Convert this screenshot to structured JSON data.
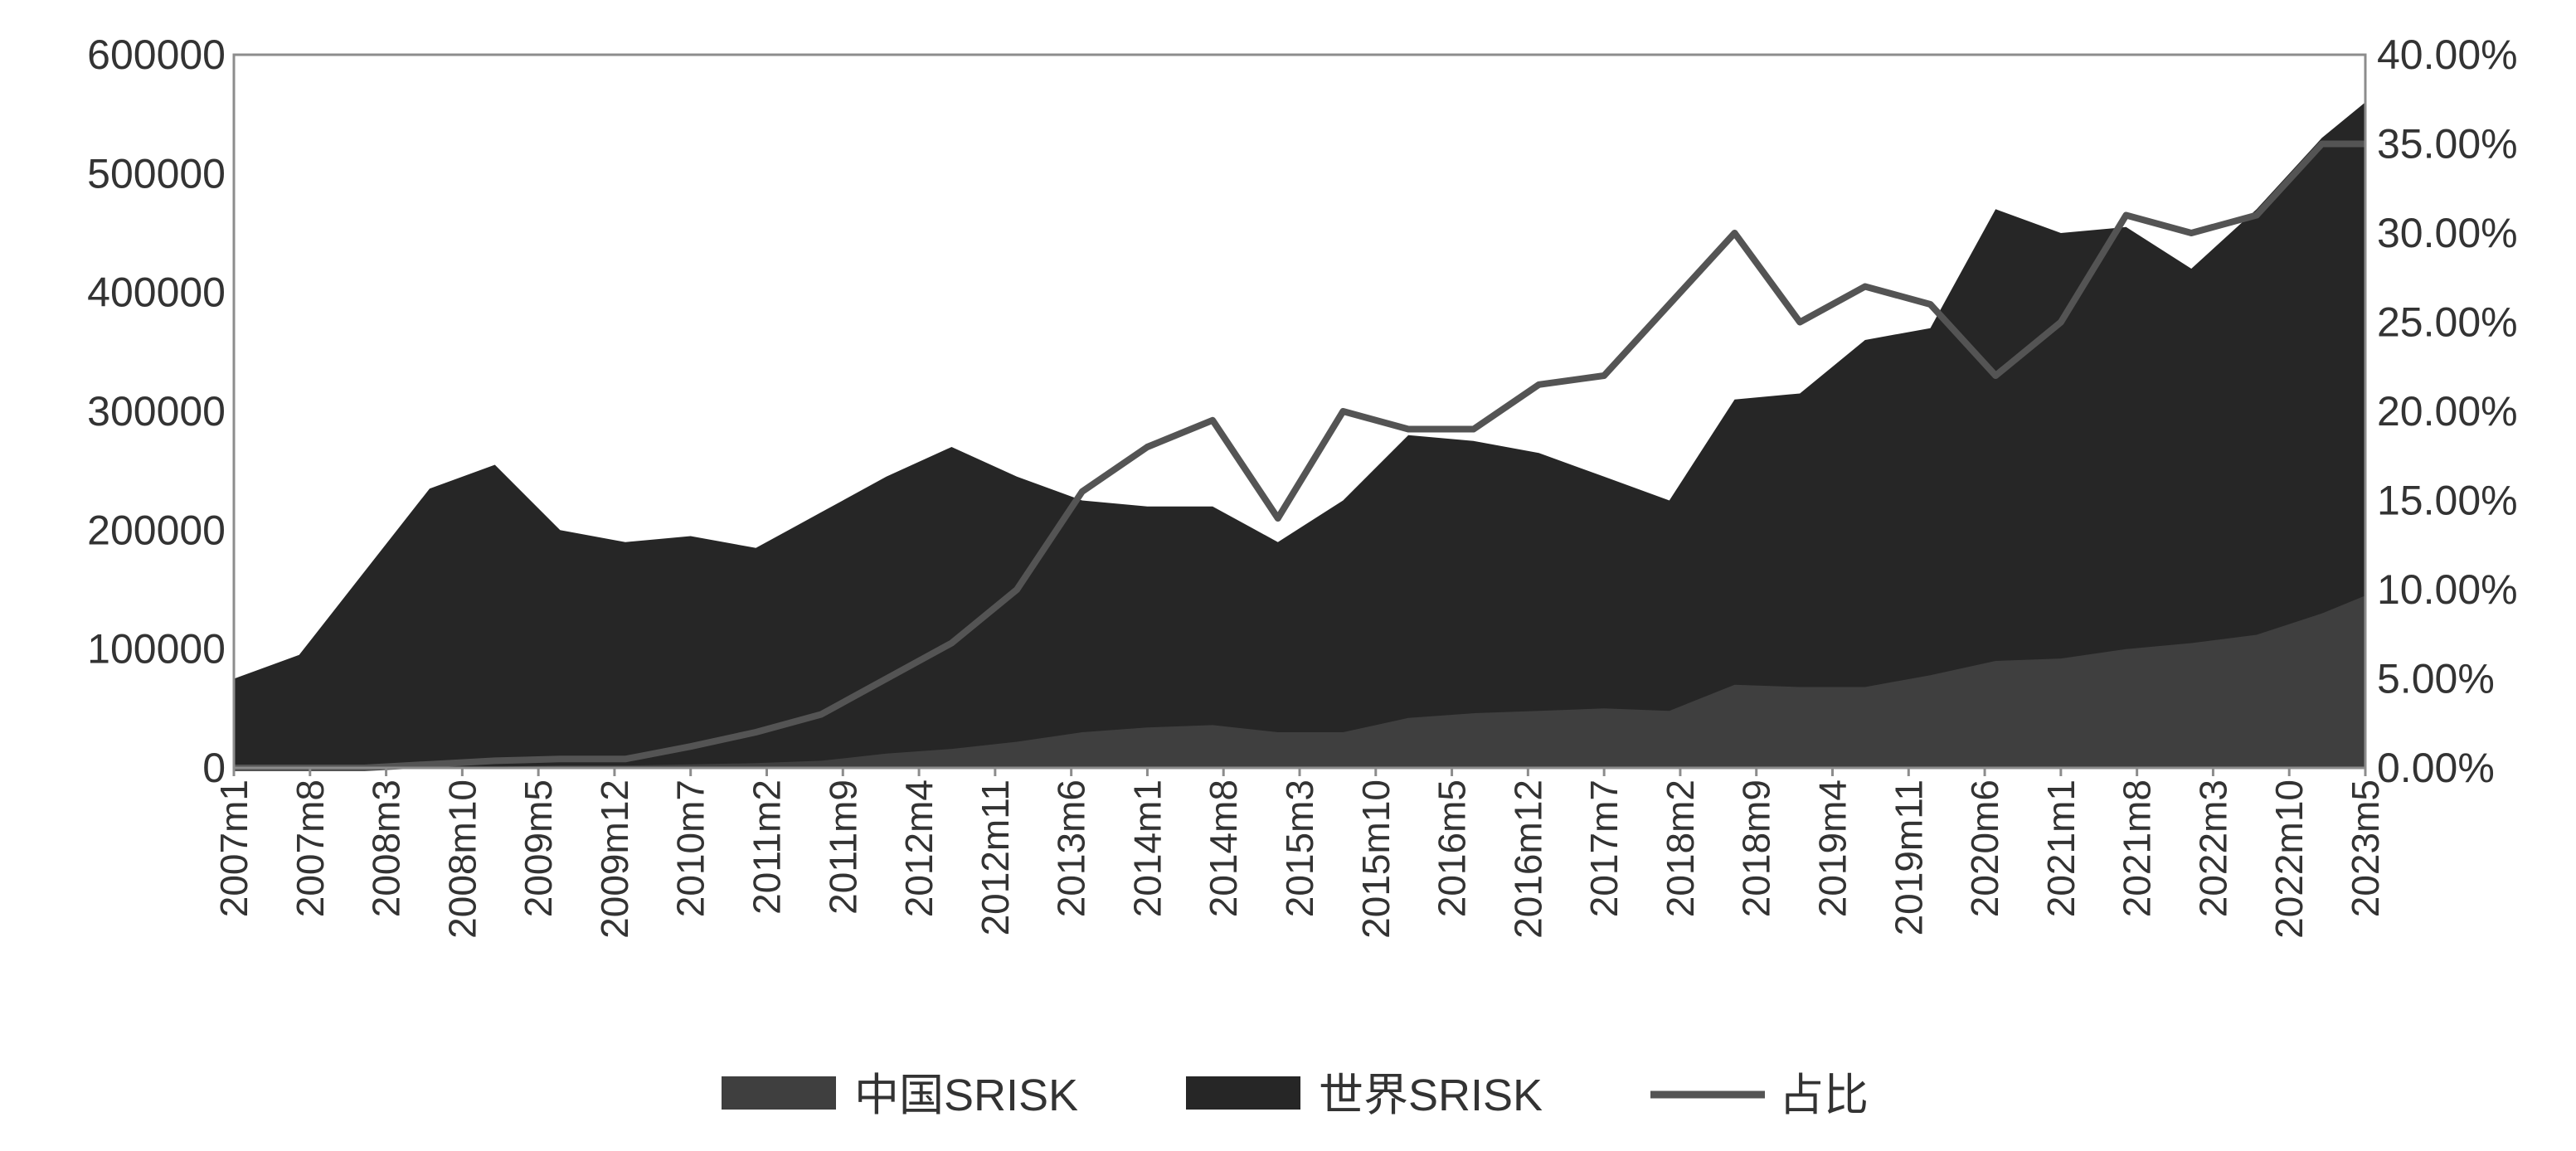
{
  "chart_data": {
    "type": "area",
    "secondary_type": "line",
    "title": "",
    "xlabel": "",
    "ylabel": "",
    "ylim": [
      0,
      600000
    ],
    "y2lim": [
      0,
      0.4
    ],
    "y_ticks": [
      "600000",
      "500000",
      "400000",
      "300000",
      "200000",
      "100000",
      "0"
    ],
    "y2_ticks": [
      "40.00%",
      "35.00%",
      "30.00%",
      "25.00%",
      "20.00%",
      "15.00%",
      "10.00%",
      "5.00%",
      "0.00%"
    ],
    "x_tick_labels": [
      "2007m1",
      "2007m8",
      "2008m3",
      "2008m10",
      "2009m5",
      "2009m12",
      "2010m7",
      "2011m2",
      "2011m9",
      "2012m4",
      "2012m11",
      "2013m6",
      "2014m1",
      "2014m8",
      "2015m3",
      "2015m10",
      "2016m5",
      "2016m12",
      "2017m7",
      "2018m2",
      "2018m9",
      "2019m4",
      "2019m11",
      "2020m6",
      "2021m1",
      "2021m8",
      "2022m3",
      "2022m10",
      "2023m5"
    ],
    "x": [
      "2007m1",
      "2007m7",
      "2008m1",
      "2008m7",
      "2009m1",
      "2009m7",
      "2010m1",
      "2010m7",
      "2011m1",
      "2011m7",
      "2012m1",
      "2012m7",
      "2013m1",
      "2013m7",
      "2014m1",
      "2014m7",
      "2015m1",
      "2015m7",
      "2016m1",
      "2016m7",
      "2017m1",
      "2017m7",
      "2018m1",
      "2018m7",
      "2019m1",
      "2019m7",
      "2020m1",
      "2020m7",
      "2021m1",
      "2021m7",
      "2022m1",
      "2022m7",
      "2023m1",
      "2023m5"
    ],
    "series": [
      {
        "name": "中国SRISK",
        "axis": "left",
        "values": [
          0,
          0,
          0,
          500,
          1000,
          2000,
          2000,
          3000,
          4000,
          6000,
          12000,
          16000,
          22000,
          30000,
          34000,
          36000,
          30000,
          30000,
          42000,
          46000,
          48000,
          50000,
          48000,
          70000,
          68000,
          68000,
          78000,
          90000,
          92000,
          100000,
          105000,
          112000,
          130000,
          145000
        ],
        "color": "#3f3f3f"
      },
      {
        "name": "世界SRISK",
        "axis": "left",
        "values": [
          75000,
          95000,
          165000,
          235000,
          255000,
          200000,
          190000,
          195000,
          185000,
          215000,
          245000,
          270000,
          245000,
          225000,
          220000,
          220000,
          190000,
          225000,
          280000,
          275000,
          265000,
          245000,
          225000,
          310000,
          315000,
          360000,
          370000,
          470000,
          450000,
          455000,
          420000,
          470000,
          530000,
          560000
        ],
        "color": "#262626"
      },
      {
        "name": "占比",
        "axis": "right",
        "values": [
          0.0,
          0.0,
          0.0,
          0.002,
          0.004,
          0.005,
          0.005,
          0.012,
          0.02,
          0.03,
          0.05,
          0.07,
          0.1,
          0.155,
          0.18,
          0.195,
          0.14,
          0.2,
          0.19,
          0.19,
          0.215,
          0.22,
          0.26,
          0.3,
          0.25,
          0.27,
          0.26,
          0.22,
          0.25,
          0.31,
          0.3,
          0.31,
          0.35,
          0.35
        ],
        "color": "#545454"
      }
    ],
    "legend_position": "bottom",
    "grid": false
  }
}
